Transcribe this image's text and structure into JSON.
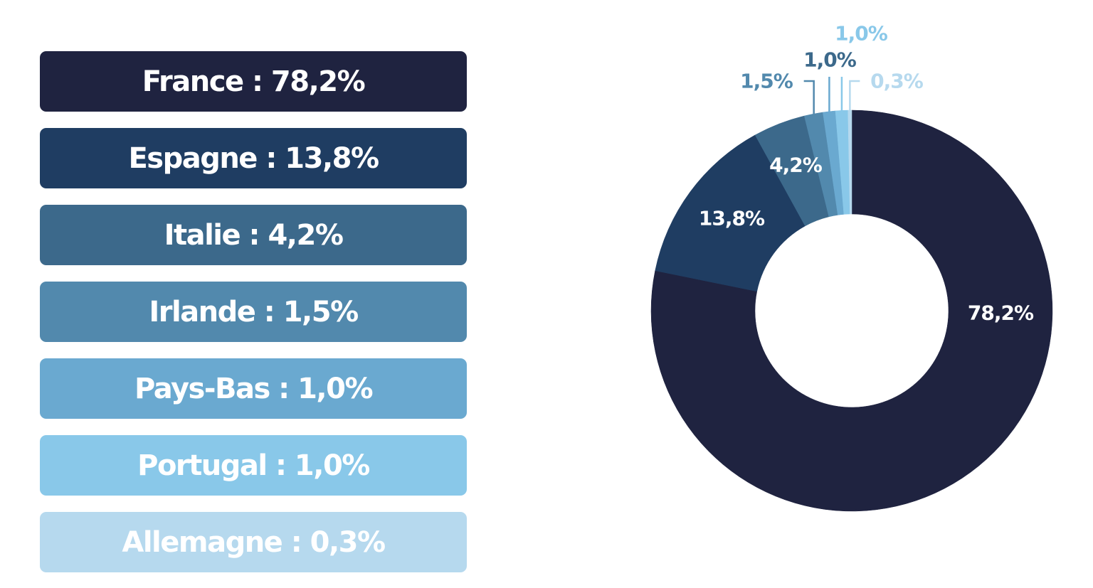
{
  "chart_data": {
    "type": "pie",
    "donut": true,
    "categories": [
      "France",
      "Espagne",
      "Italie",
      "Irlande",
      "Pays-Bas",
      "Portugal",
      "Allemagne"
    ],
    "values": [
      78.2,
      13.8,
      4.2,
      1.5,
      1.0,
      1.0,
      0.3
    ],
    "colors": [
      "#1f2340",
      "#1f3d62",
      "#3c698b",
      "#5289ad",
      "#6aa9d0",
      "#89c8e9",
      "#b6d9ee"
    ],
    "legend": [
      "France : 78,2%",
      "Espagne : 13,8%",
      "Italie : 4,2%",
      "Irlande : 1,5%",
      "Pays-Bas : 1,0%",
      "Portugal : 1,0%",
      "Allemagne : 0,3%"
    ],
    "slice_labels": [
      "78,2%",
      "13,8%",
      "4,2%",
      "1,5%",
      "1,0%",
      "1,0%",
      "0,3%"
    ],
    "legend_position": "left"
  }
}
